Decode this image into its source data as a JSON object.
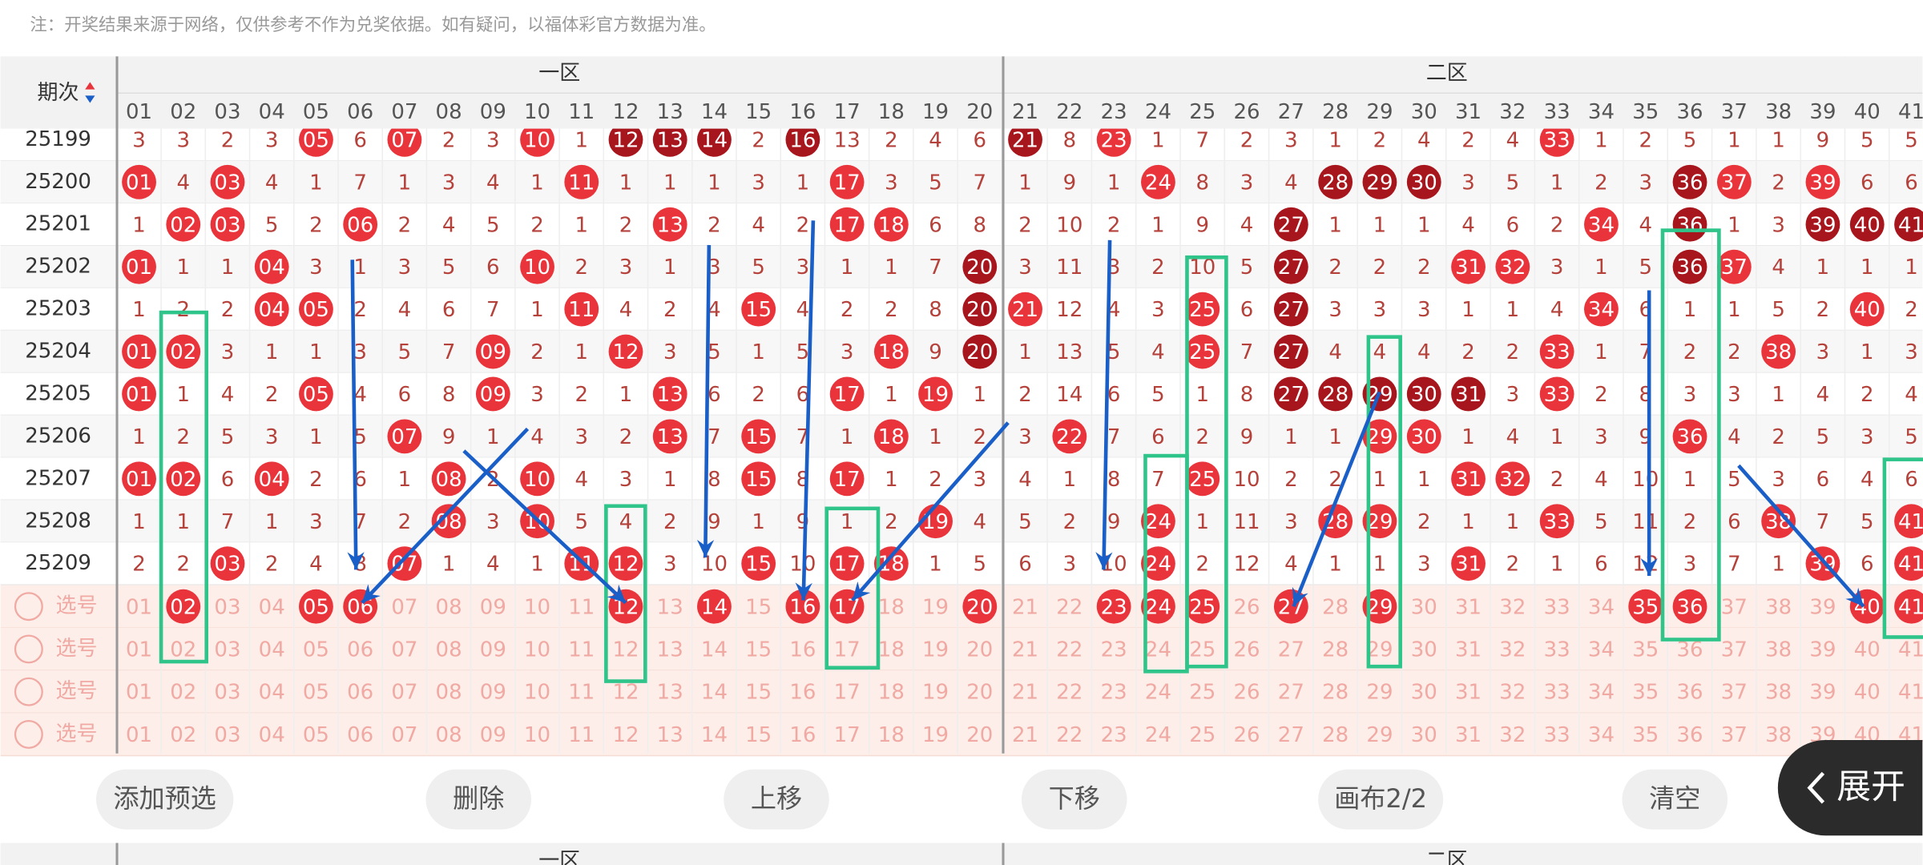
{
  "note": "注：开奖结果来源于网络，仅供参考不作为兑奖依据。如有疑问，以福体彩官方数据为准。",
  "table": {
    "period_header": "期次",
    "zones": [
      "一区",
      "二区"
    ],
    "columns": [
      "01",
      "02",
      "03",
      "04",
      "05",
      "06",
      "07",
      "08",
      "09",
      "10",
      "11",
      "12",
      "13",
      "14",
      "15",
      "16",
      "17",
      "18",
      "19",
      "20",
      "21",
      "22",
      "23",
      "24",
      "25",
      "26",
      "27",
      "28",
      "29",
      "30",
      "31",
      "32",
      "33",
      "34",
      "35",
      "36",
      "37",
      "38",
      "39",
      "40",
      "41"
    ],
    "rows": [
      {
        "period": "25199",
        "cells": [
          "3",
          "3",
          "2",
          "3",
          "05",
          "6",
          "07",
          "2",
          "3",
          "10",
          "1",
          "12",
          "13",
          "14",
          "2",
          "16",
          "13",
          "2",
          "4",
          "6",
          "21",
          "8",
          "23",
          "1",
          "7",
          "2",
          "3",
          "1",
          "2",
          "4",
          "2",
          "4",
          "33",
          "1",
          "2",
          "5",
          "1",
          "1",
          "9",
          "5",
          "5"
        ],
        "dark": [
          "12",
          "13",
          "14",
          "16",
          "21"
        ]
      },
      {
        "period": "25200",
        "cells": [
          "01",
          "4",
          "03",
          "4",
          "1",
          "7",
          "1",
          "3",
          "4",
          "1",
          "11",
          "1",
          "1",
          "1",
          "3",
          "1",
          "17",
          "3",
          "5",
          "7",
          "1",
          "9",
          "1",
          "24",
          "8",
          "3",
          "4",
          "28",
          "29",
          "30",
          "3",
          "5",
          "1",
          "2",
          "3",
          "36",
          "37",
          "2",
          "39",
          "6",
          "6"
        ],
        "dark": [
          "28",
          "29",
          "30",
          "36"
        ]
      },
      {
        "period": "25201",
        "cells": [
          "1",
          "02",
          "03",
          "5",
          "2",
          "06",
          "2",
          "4",
          "5",
          "2",
          "1",
          "2",
          "13",
          "2",
          "4",
          "2",
          "17",
          "18",
          "6",
          "8",
          "2",
          "10",
          "2",
          "1",
          "9",
          "4",
          "27",
          "1",
          "1",
          "1",
          "4",
          "6",
          "2",
          "34",
          "4",
          "36",
          "1",
          "3",
          "39",
          "40",
          "41"
        ],
        "dark": [
          "27",
          "36",
          "39",
          "40",
          "41"
        ]
      },
      {
        "period": "25202",
        "cells": [
          "01",
          "1",
          "1",
          "04",
          "3",
          "1",
          "3",
          "5",
          "6",
          "10",
          "2",
          "3",
          "1",
          "3",
          "5",
          "3",
          "1",
          "1",
          "7",
          "20",
          "3",
          "11",
          "3",
          "2",
          "10",
          "5",
          "27",
          "2",
          "2",
          "2",
          "31",
          "32",
          "3",
          "1",
          "5",
          "36",
          "37",
          "4",
          "1",
          "1",
          "1"
        ],
        "dark": [
          "20",
          "27",
          "36"
        ]
      },
      {
        "period": "25203",
        "cells": [
          "1",
          "2",
          "2",
          "04",
          "05",
          "2",
          "4",
          "6",
          "7",
          "1",
          "11",
          "4",
          "2",
          "4",
          "15",
          "4",
          "2",
          "2",
          "8",
          "20",
          "21",
          "12",
          "4",
          "3",
          "25",
          "6",
          "27",
          "3",
          "3",
          "3",
          "1",
          "1",
          "4",
          "34",
          "6",
          "1",
          "1",
          "5",
          "2",
          "40",
          "2"
        ],
        "dark": [
          "20",
          "27"
        ]
      },
      {
        "period": "25204",
        "cells": [
          "01",
          "02",
          "3",
          "1",
          "1",
          "3",
          "5",
          "7",
          "09",
          "2",
          "1",
          "12",
          "3",
          "5",
          "1",
          "5",
          "3",
          "18",
          "9",
          "20",
          "1",
          "13",
          "5",
          "4",
          "25",
          "7",
          "27",
          "4",
          "4",
          "4",
          "2",
          "2",
          "33",
          "1",
          "7",
          "2",
          "2",
          "38",
          "3",
          "1",
          "3"
        ],
        "dark": [
          "20",
          "27"
        ]
      },
      {
        "period": "25205",
        "cells": [
          "01",
          "1",
          "4",
          "2",
          "05",
          "4",
          "6",
          "8",
          "09",
          "3",
          "2",
          "1",
          "13",
          "6",
          "2",
          "6",
          "17",
          "1",
          "19",
          "1",
          "2",
          "14",
          "6",
          "5",
          "1",
          "8",
          "27",
          "28",
          "29",
          "30",
          "31",
          "3",
          "33",
          "2",
          "8",
          "3",
          "3",
          "1",
          "4",
          "2",
          "4"
        ],
        "dark": [
          "27",
          "28",
          "29",
          "30",
          "31"
        ]
      },
      {
        "period": "25206",
        "cells": [
          "1",
          "2",
          "5",
          "3",
          "1",
          "5",
          "07",
          "9",
          "1",
          "4",
          "3",
          "2",
          "13",
          "7",
          "15",
          "7",
          "1",
          "18",
          "1",
          "2",
          "3",
          "22",
          "7",
          "6",
          "2",
          "9",
          "1",
          "1",
          "29",
          "30",
          "1",
          "4",
          "1",
          "3",
          "9",
          "36",
          "4",
          "2",
          "5",
          "3",
          "5"
        ]
      },
      {
        "period": "25207",
        "cells": [
          "01",
          "02",
          "6",
          "04",
          "2",
          "6",
          "1",
          "08",
          "2",
          "10",
          "4",
          "3",
          "1",
          "8",
          "15",
          "8",
          "17",
          "1",
          "2",
          "3",
          "4",
          "1",
          "8",
          "7",
          "25",
          "10",
          "2",
          "2",
          "1",
          "1",
          "31",
          "32",
          "2",
          "4",
          "10",
          "1",
          "5",
          "3",
          "6",
          "4",
          "6"
        ]
      },
      {
        "period": "25208",
        "cells": [
          "1",
          "1",
          "7",
          "1",
          "3",
          "7",
          "2",
          "08",
          "3",
          "10",
          "5",
          "4",
          "2",
          "9",
          "1",
          "9",
          "1",
          "2",
          "19",
          "4",
          "5",
          "2",
          "9",
          "24",
          "1",
          "11",
          "3",
          "28",
          "29",
          "2",
          "1",
          "1",
          "33",
          "5",
          "11",
          "2",
          "6",
          "38",
          "7",
          "5",
          "41"
        ]
      },
      {
        "period": "25209",
        "cells": [
          "2",
          "2",
          "03",
          "2",
          "4",
          "8",
          "07",
          "1",
          "4",
          "1",
          "11",
          "12",
          "3",
          "10",
          "15",
          "10",
          "17",
          "18",
          "1",
          "5",
          "6",
          "3",
          "10",
          "24",
          "2",
          "12",
          "4",
          "1",
          "1",
          "3",
          "31",
          "2",
          "1",
          "6",
          "12",
          "3",
          "7",
          "1",
          "39",
          "6",
          "41"
        ]
      }
    ],
    "pick_rows": [
      {
        "label": "选号",
        "picked": [
          "02",
          "05",
          "06",
          "12",
          "14",
          "16",
          "17",
          "20",
          "23",
          "24",
          "25",
          "27",
          "29",
          "35",
          "36",
          "40",
          "41"
        ]
      },
      {
        "label": "选号"
      },
      {
        "label": "选号"
      },
      {
        "label": "选号"
      }
    ]
  },
  "buttons": [
    "添加预选",
    "删除",
    "上移",
    "下移",
    "画布2/2",
    "清空"
  ],
  "expand_button": "展开",
  "footer_zones": [
    "一区",
    "二区"
  ]
}
